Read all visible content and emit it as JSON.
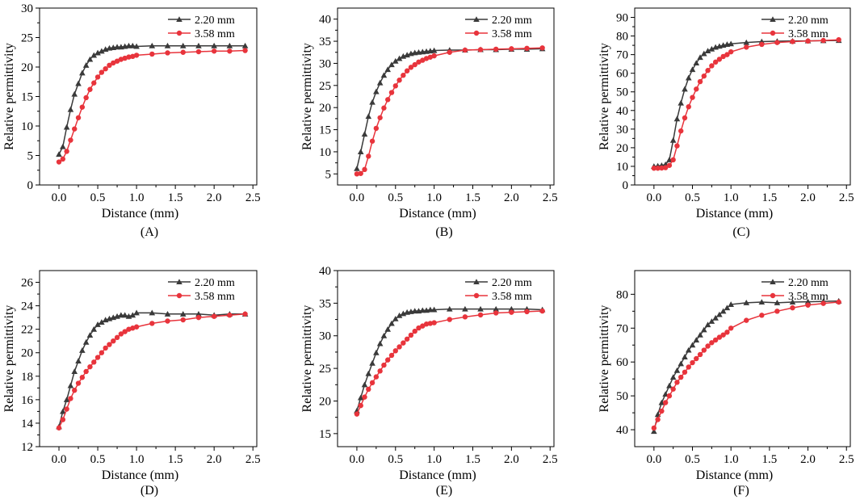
{
  "chart_data": [
    {
      "type": "line",
      "panel_label": "(A)",
      "xlabel": "Distance (mm)",
      "ylabel": "Relative permittivity",
      "xlim": [
        -0.25,
        2.55
      ],
      "ylim": [
        0,
        30
      ],
      "xticks": [
        0.0,
        0.5,
        1.0,
        1.5,
        2.0,
        2.5
      ],
      "yticks": [
        0,
        5,
        10,
        15,
        20,
        25,
        30
      ],
      "legend_position": "top-right",
      "series": [
        {
          "name": "2.20 mm",
          "color": "#3a3a3a",
          "marker": "triangle",
          "x": [
            0,
            0.05,
            0.1,
            0.15,
            0.2,
            0.25,
            0.3,
            0.35,
            0.4,
            0.45,
            0.5,
            0.55,
            0.6,
            0.65,
            0.7,
            0.75,
            0.8,
            0.85,
            0.9,
            0.95,
            1.0,
            1.2,
            1.4,
            1.6,
            1.8,
            2.0,
            2.2,
            2.4
          ],
          "y": [
            5.2,
            6.5,
            9.8,
            12.8,
            15.4,
            17.2,
            19.0,
            20.3,
            21.3,
            22.0,
            22.4,
            22.7,
            23.0,
            23.2,
            23.3,
            23.4,
            23.4,
            23.5,
            23.6,
            23.6,
            23.5,
            23.6,
            23.6,
            23.6,
            23.6,
            23.6,
            23.6,
            23.6
          ]
        },
        {
          "name": "3.58 mm",
          "color": "#e8343c",
          "marker": "circle",
          "x": [
            0,
            0.05,
            0.1,
            0.15,
            0.2,
            0.25,
            0.3,
            0.35,
            0.4,
            0.45,
            0.5,
            0.55,
            0.6,
            0.65,
            0.7,
            0.75,
            0.8,
            0.85,
            0.9,
            0.95,
            1.0,
            1.2,
            1.4,
            1.6,
            1.8,
            2.0,
            2.2,
            2.4
          ],
          "y": [
            3.9,
            4.4,
            5.7,
            7.6,
            9.5,
            11.4,
            13.2,
            14.8,
            16.2,
            17.3,
            18.3,
            19.1,
            19.7,
            20.3,
            20.7,
            21.0,
            21.3,
            21.5,
            21.7,
            21.8,
            22.0,
            22.2,
            22.4,
            22.5,
            22.6,
            22.7,
            22.7,
            22.8
          ]
        }
      ]
    },
    {
      "type": "line",
      "panel_label": "(B)",
      "xlabel": "Distance (mm)",
      "ylabel": "Relative permittivity",
      "xlim": [
        -0.25,
        2.55
      ],
      "ylim": [
        2.5,
        42.5
      ],
      "xticks": [
        0.0,
        0.5,
        1.0,
        1.5,
        2.0,
        2.5
      ],
      "yticks": [
        5,
        10,
        15,
        20,
        25,
        30,
        35,
        40
      ],
      "legend_position": "top-right",
      "series": [
        {
          "name": "2.20 mm",
          "color": "#3a3a3a",
          "marker": "triangle",
          "x": [
            0,
            0.05,
            0.1,
            0.15,
            0.2,
            0.25,
            0.3,
            0.35,
            0.4,
            0.45,
            0.5,
            0.55,
            0.6,
            0.65,
            0.7,
            0.75,
            0.8,
            0.85,
            0.9,
            0.95,
            1.0,
            1.2,
            1.4,
            1.6,
            1.8,
            2.0,
            2.2,
            2.4
          ],
          "y": [
            6.2,
            10.0,
            14.0,
            18.0,
            21.2,
            23.6,
            25.6,
            27.3,
            28.6,
            29.7,
            30.5,
            31.1,
            31.6,
            31.9,
            32.2,
            32.4,
            32.5,
            32.6,
            32.7,
            32.8,
            32.9,
            33.0,
            33.0,
            33.1,
            33.1,
            33.2,
            33.2,
            33.3
          ]
        },
        {
          "name": "3.58 mm",
          "color": "#e8343c",
          "marker": "circle",
          "x": [
            0,
            0.05,
            0.1,
            0.15,
            0.2,
            0.25,
            0.3,
            0.35,
            0.4,
            0.45,
            0.5,
            0.55,
            0.6,
            0.65,
            0.7,
            0.75,
            0.8,
            0.85,
            0.9,
            0.95,
            1.0,
            1.2,
            1.4,
            1.6,
            1.8,
            2.0,
            2.2,
            2.4
          ],
          "y": [
            5.0,
            5.1,
            6.0,
            9.0,
            12.4,
            15.3,
            17.7,
            19.9,
            21.8,
            23.4,
            24.9,
            26.2,
            27.3,
            28.3,
            29.1,
            29.7,
            30.3,
            30.7,
            31.1,
            31.4,
            31.7,
            32.5,
            33.0,
            33.1,
            33.2,
            33.3,
            33.4,
            33.5
          ]
        }
      ]
    },
    {
      "type": "line",
      "panel_label": "(C)",
      "xlabel": "Distance (mm)",
      "ylabel": "Relative permittivity",
      "xlim": [
        -0.25,
        2.55
      ],
      "ylim": [
        0,
        95
      ],
      "xticks": [
        0.0,
        0.5,
        1.0,
        1.5,
        2.0,
        2.5
      ],
      "yticks": [
        0,
        10,
        20,
        30,
        40,
        50,
        60,
        70,
        80,
        90
      ],
      "legend_position": "top-right",
      "series": [
        {
          "name": "2.20 mm",
          "color": "#3a3a3a",
          "marker": "triangle",
          "x": [
            0,
            0.05,
            0.1,
            0.15,
            0.2,
            0.25,
            0.3,
            0.35,
            0.4,
            0.45,
            0.5,
            0.55,
            0.6,
            0.65,
            0.7,
            0.75,
            0.8,
            0.85,
            0.9,
            0.95,
            1.0,
            1.2,
            1.4,
            1.6,
            1.8,
            2.0,
            2.2,
            2.4
          ],
          "y": [
            10.0,
            10.2,
            10.5,
            11.0,
            13.5,
            24.0,
            35.5,
            44.0,
            51.5,
            57.5,
            62.0,
            65.5,
            68.5,
            70.5,
            72.0,
            73.0,
            74.0,
            74.5,
            75.0,
            75.5,
            75.8,
            76.5,
            77.0,
            77.2,
            77.3,
            77.4,
            77.5,
            77.6
          ]
        },
        {
          "name": "3.58 mm",
          "color": "#e8343c",
          "marker": "circle",
          "x": [
            0,
            0.05,
            0.1,
            0.15,
            0.2,
            0.25,
            0.3,
            0.35,
            0.4,
            0.45,
            0.5,
            0.55,
            0.6,
            0.65,
            0.7,
            0.75,
            0.8,
            0.85,
            0.9,
            0.95,
            1.0,
            1.2,
            1.4,
            1.6,
            1.8,
            2.0,
            2.2,
            2.4
          ],
          "y": [
            9.0,
            9.0,
            9.1,
            9.3,
            10.5,
            13.5,
            21.0,
            29.0,
            36.0,
            42.0,
            47.0,
            51.5,
            55.5,
            58.5,
            61.5,
            64.0,
            66.0,
            67.5,
            69.0,
            70.0,
            71.5,
            74.0,
            75.5,
            76.5,
            77.0,
            77.3,
            77.6,
            78.0
          ]
        }
      ]
    },
    {
      "type": "line",
      "panel_label": "(D)",
      "xlabel": "Distance (mm)",
      "ylabel": "Relative permittivity",
      "xlim": [
        -0.25,
        2.55
      ],
      "ylim": [
        12,
        27
      ],
      "xticks": [
        0.0,
        0.5,
        1.0,
        1.5,
        2.0,
        2.5
      ],
      "yticks": [
        12,
        14,
        16,
        18,
        20,
        22,
        24,
        26
      ],
      "legend_position": "top-right",
      "series": [
        {
          "name": "2.20 mm",
          "color": "#3a3a3a",
          "marker": "triangle",
          "x": [
            0,
            0.05,
            0.1,
            0.15,
            0.2,
            0.25,
            0.3,
            0.35,
            0.4,
            0.45,
            0.5,
            0.55,
            0.6,
            0.65,
            0.7,
            0.75,
            0.8,
            0.85,
            0.9,
            0.95,
            1.0,
            1.2,
            1.4,
            1.6,
            1.8,
            2.0,
            2.2,
            2.4
          ],
          "y": [
            13.7,
            15.0,
            16.0,
            17.2,
            18.4,
            19.3,
            20.2,
            20.9,
            21.5,
            22.0,
            22.4,
            22.6,
            22.8,
            22.9,
            23.0,
            23.1,
            23.2,
            23.2,
            23.1,
            23.2,
            23.4,
            23.4,
            23.3,
            23.3,
            23.3,
            23.2,
            23.3,
            23.3
          ]
        },
        {
          "name": "3.58 mm",
          "color": "#e8343c",
          "marker": "circle",
          "x": [
            0,
            0.05,
            0.1,
            0.15,
            0.2,
            0.25,
            0.3,
            0.35,
            0.4,
            0.45,
            0.5,
            0.55,
            0.6,
            0.65,
            0.7,
            0.75,
            0.8,
            0.85,
            0.9,
            0.95,
            1.0,
            1.2,
            1.4,
            1.6,
            1.8,
            2.0,
            2.2,
            2.4
          ],
          "y": [
            13.6,
            14.3,
            15.2,
            16.1,
            16.8,
            17.4,
            17.9,
            18.4,
            18.8,
            19.2,
            19.6,
            20.0,
            20.4,
            20.7,
            21.0,
            21.3,
            21.6,
            21.8,
            22.0,
            22.1,
            22.2,
            22.5,
            22.7,
            22.8,
            23.0,
            23.1,
            23.2,
            23.3
          ]
        }
      ]
    },
    {
      "type": "line",
      "panel_label": "(E)",
      "xlabel": "Distance (mm)",
      "ylabel": "Relative permittivity",
      "xlim": [
        -0.25,
        2.55
      ],
      "ylim": [
        13,
        40
      ],
      "xticks": [
        0.0,
        0.5,
        1.0,
        1.5,
        2.0,
        2.5
      ],
      "yticks": [
        15,
        20,
        25,
        30,
        35,
        40
      ],
      "legend_position": "top-right",
      "series": [
        {
          "name": "2.20 mm",
          "color": "#3a3a3a",
          "marker": "triangle",
          "x": [
            0,
            0.05,
            0.1,
            0.15,
            0.2,
            0.25,
            0.3,
            0.35,
            0.4,
            0.45,
            0.5,
            0.55,
            0.6,
            0.65,
            0.7,
            0.75,
            0.8,
            0.85,
            0.9,
            0.95,
            1.0,
            1.2,
            1.4,
            1.6,
            1.8,
            2.0,
            2.2,
            2.4
          ],
          "y": [
            18.5,
            20.5,
            22.5,
            24.2,
            25.8,
            27.4,
            28.8,
            30.0,
            31.0,
            31.9,
            32.6,
            33.1,
            33.4,
            33.6,
            33.7,
            33.8,
            33.8,
            33.9,
            33.9,
            34.0,
            34.0,
            34.1,
            34.1,
            34.1,
            34.1,
            34.1,
            34.1,
            34.0
          ]
        },
        {
          "name": "3.58 mm",
          "color": "#e8343c",
          "marker": "circle",
          "x": [
            0,
            0.05,
            0.1,
            0.15,
            0.2,
            0.25,
            0.3,
            0.35,
            0.4,
            0.45,
            0.5,
            0.55,
            0.6,
            0.65,
            0.7,
            0.75,
            0.8,
            0.85,
            0.9,
            0.95,
            1.0,
            1.2,
            1.4,
            1.6,
            1.8,
            2.0,
            2.2,
            2.4
          ],
          "y": [
            18.0,
            19.3,
            20.6,
            21.8,
            22.8,
            23.7,
            24.6,
            25.5,
            26.3,
            27.0,
            27.7,
            28.3,
            28.9,
            29.5,
            30.1,
            30.7,
            31.2,
            31.5,
            31.8,
            31.9,
            32.0,
            32.5,
            32.9,
            33.2,
            33.5,
            33.6,
            33.7,
            33.8
          ]
        }
      ]
    },
    {
      "type": "line",
      "panel_label": "(F)",
      "xlabel": "Distance (mm)",
      "ylabel": "Relative permittivity",
      "xlim": [
        -0.25,
        2.55
      ],
      "ylim": [
        35,
        87
      ],
      "xticks": [
        0.0,
        0.5,
        1.0,
        1.5,
        2.0,
        2.5
      ],
      "yticks": [
        40,
        50,
        60,
        70,
        80
      ],
      "legend_position": "top-right",
      "series": [
        {
          "name": "2.20 mm",
          "color": "#3a3a3a",
          "marker": "triangle",
          "x": [
            0,
            0.05,
            0.1,
            0.15,
            0.2,
            0.25,
            0.3,
            0.35,
            0.4,
            0.45,
            0.5,
            0.55,
            0.6,
            0.65,
            0.7,
            0.75,
            0.8,
            0.85,
            0.9,
            0.95,
            1.0,
            1.2,
            1.4,
            1.6,
            1.8,
            2.0,
            2.2,
            2.4
          ],
          "y": [
            39.5,
            44.5,
            48.0,
            50.5,
            53.0,
            55.5,
            57.5,
            59.5,
            61.5,
            63.5,
            65.0,
            66.5,
            68.0,
            69.5,
            71.0,
            72.0,
            73.0,
            74.0,
            75.0,
            76.0,
            77.0,
            77.5,
            77.7,
            77.5,
            77.7,
            77.8,
            77.9,
            78.0
          ]
        },
        {
          "name": "3.58 mm",
          "color": "#e8343c",
          "marker": "circle",
          "x": [
            0,
            0.05,
            0.1,
            0.15,
            0.2,
            0.25,
            0.3,
            0.35,
            0.4,
            0.45,
            0.5,
            0.55,
            0.6,
            0.65,
            0.7,
            0.75,
            0.8,
            0.85,
            0.9,
            0.95,
            1.0,
            1.2,
            1.4,
            1.6,
            1.8,
            2.0,
            2.2,
            2.4
          ],
          "y": [
            40.5,
            43.0,
            45.5,
            48.0,
            50.0,
            52.0,
            54.0,
            55.5,
            57.0,
            58.5,
            59.8,
            61.0,
            62.2,
            63.5,
            64.7,
            65.7,
            66.5,
            67.3,
            68.0,
            68.8,
            70.0,
            72.3,
            73.8,
            75.0,
            76.0,
            76.8,
            77.3,
            77.7
          ]
        }
      ]
    }
  ]
}
